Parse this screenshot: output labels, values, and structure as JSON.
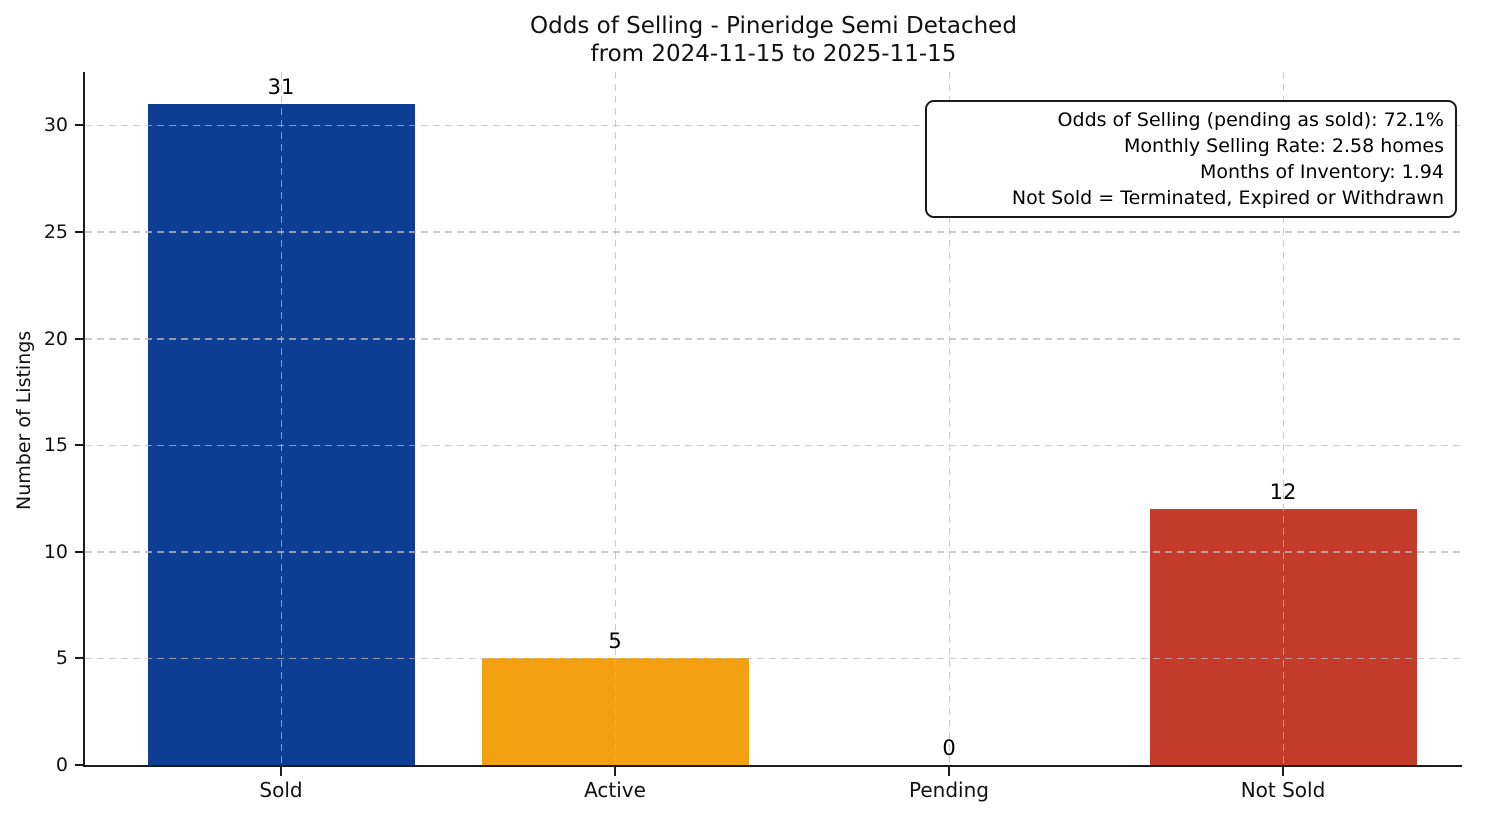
{
  "chart_data": {
    "type": "bar",
    "title_lines": [
      "Odds of Selling - Pineridge Semi Detached",
      "from 2024-11-15 to 2025-11-15"
    ],
    "categories": [
      "Sold",
      "Active",
      "Pending",
      "Not Sold"
    ],
    "values": [
      31,
      5,
      0,
      12
    ],
    "value_labels": [
      "31",
      "5",
      "0",
      "12"
    ],
    "bar_colors": [
      "#0d3e94",
      "#f3a011",
      null,
      "#c23b2b"
    ],
    "ylabel": "Number of Listings",
    "ylim": [
      0,
      32.5
    ],
    "yticks": [
      0,
      5,
      10,
      15,
      20,
      25,
      30
    ],
    "grid": true,
    "legend": null,
    "annotation_position": "top-right",
    "annotation_lines": [
      "Odds of Selling (pending as sold): 72.1%",
      "Monthly Selling Rate: 2.58 homes",
      "Months of Inventory: 1.94",
      "Not Sold = Terminated, Expired or Withdrawn"
    ]
  }
}
